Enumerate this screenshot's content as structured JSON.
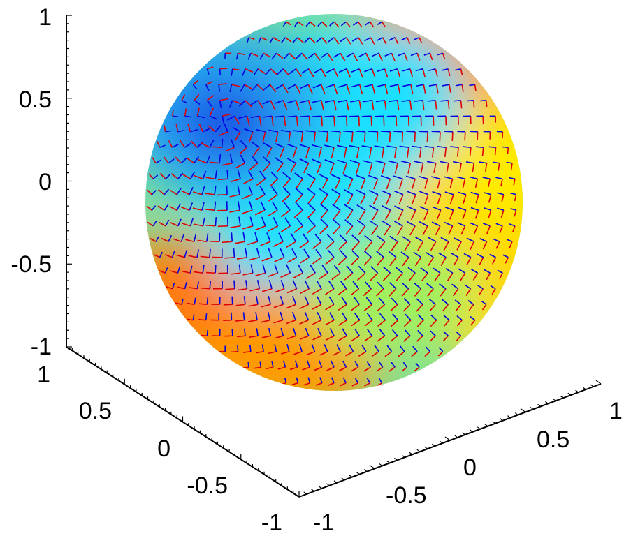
{
  "chart_data": {
    "type": "surface-quiver-3d",
    "title": "",
    "xlabel": "",
    "ylabel": "",
    "zlabel": "",
    "surface": "unit-sphere",
    "colormap": "jet",
    "grid": false,
    "colorbar": false,
    "view": "3d-isometric",
    "axes": {
      "x": {
        "ticks": [
          "-1",
          "-0.5",
          "0",
          "0.5",
          "1"
        ],
        "lim": [
          -1,
          1
        ]
      },
      "y": {
        "ticks": [
          "-1",
          "-0.5",
          "0",
          "0.5",
          "1"
        ],
        "lim": [
          -1,
          1
        ]
      },
      "z": {
        "ticks": [
          "-1",
          "-0.5",
          "0",
          "0.5",
          "1"
        ],
        "lim": [
          -1,
          1
        ]
      }
    },
    "vector_fields": [
      {
        "color": "#e00000"
      },
      {
        "color": "#0000e0"
      }
    ]
  }
}
